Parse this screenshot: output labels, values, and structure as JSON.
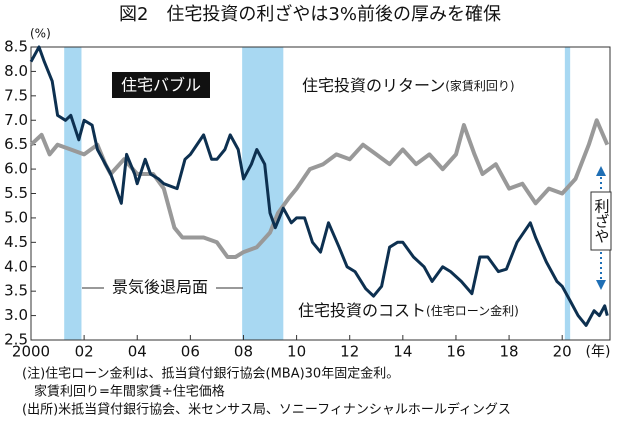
{
  "chart_data": {
    "type": "line",
    "title": "図2　住宅投資の利ざやは3%前後の厚みを確保",
    "y_unit": "(%)",
    "x_unit": "(年)",
    "xlim": [
      2000,
      2021.8
    ],
    "xticks": [
      2000,
      {
        "value": 2002,
        "label": "02"
      },
      {
        "value": 2004,
        "label": "04"
      },
      {
        "value": 2006,
        "label": "06"
      },
      {
        "value": 2008,
        "label": "08"
      },
      {
        "value": 2010,
        "label": "10"
      },
      {
        "value": 2012,
        "label": "12"
      },
      {
        "value": 2014,
        "label": "14"
      },
      {
        "value": 2016,
        "label": "16"
      },
      {
        "value": 2018,
        "label": "18"
      },
      {
        "value": 2020,
        "label": "20"
      }
    ],
    "ylim": [
      2.5,
      8.5
    ],
    "yticks": [
      2.5,
      {
        "value": 3,
        "label": "3.0"
      },
      3.5,
      {
        "value": 4,
        "label": "4.0"
      },
      4.5,
      {
        "value": 5,
        "label": "5.0"
      },
      5.5,
      {
        "value": 6,
        "label": "6.0"
      },
      6.5,
      {
        "value": 7,
        "label": "7.0"
      },
      7.5,
      {
        "value": 8,
        "label": "8.0"
      },
      8.5
    ],
    "grid": false,
    "shading": [
      [
        2001.25,
        2001.9
      ],
      [
        2007.95,
        2009.5
      ],
      [
        2020.1,
        2020.3
      ]
    ],
    "shading_color": "#a8d8f2",
    "shading_label": "景気後退局面",
    "bubble_label": "住宅バブル",
    "margin_label": "利ざや",
    "series": [
      {
        "name": "住宅投資のリターン",
        "subname": "(家賃利回り)",
        "color": "#999999",
        "x": [
          2000,
          2000.4,
          2000.7,
          2001,
          2001.5,
          2002,
          2002.5,
          2002.8,
          2003,
          2003.5,
          2004,
          2004.6,
          2005,
          2005.4,
          2005.7,
          2006,
          2006.5,
          2007,
          2007.4,
          2007.7,
          2008,
          2008.5,
          2009,
          2009.3,
          2009.7,
          2010,
          2010.5,
          2011,
          2011.5,
          2012,
          2012.5,
          2013,
          2013.5,
          2014,
          2014.5,
          2015,
          2015.5,
          2016,
          2016.3,
          2016.7,
          2017,
          2017.5,
          2018,
          2018.5,
          2019,
          2019.5,
          2020,
          2020.5,
          2021,
          2021.3,
          2021.7
        ],
        "values": [
          6.5,
          6.7,
          6.3,
          6.5,
          6.4,
          6.3,
          6.5,
          6.1,
          5.9,
          6.2,
          5.9,
          5.9,
          5.6,
          4.8,
          4.6,
          4.6,
          4.6,
          4.5,
          4.2,
          4.2,
          4.3,
          4.4,
          4.7,
          5.1,
          5.4,
          5.6,
          6.0,
          6.1,
          6.3,
          6.2,
          6.5,
          6.3,
          6.1,
          6.4,
          6.1,
          6.3,
          6.0,
          6.3,
          6.9,
          6.3,
          5.9,
          6.1,
          5.6,
          5.7,
          5.3,
          5.6,
          5.5,
          5.8,
          6.5,
          7.0,
          6.5
        ]
      },
      {
        "name": "住宅投資のコスト",
        "subname": "(住宅ローン金利)",
        "color": "#0d3050",
        "x": [
          2000,
          2000.3,
          2000.5,
          2000.8,
          2001,
          2001.3,
          2001.5,
          2001.8,
          2002,
          2002.3,
          2002.5,
          2002.8,
          2003,
          2003.4,
          2003.6,
          2003.9,
          2004,
          2004.3,
          2004.5,
          2004.8,
          2005,
          2005.5,
          2005.8,
          2006,
          2006.5,
          2006.8,
          2007,
          2007.3,
          2007.5,
          2007.8,
          2008,
          2008.3,
          2008.5,
          2008.8,
          2009,
          2009.2,
          2009.5,
          2009.8,
          2010,
          2010.3,
          2010.6,
          2010.9,
          2011.2,
          2011.6,
          2011.9,
          2012.2,
          2012.6,
          2012.9,
          2013.2,
          2013.5,
          2013.8,
          2014,
          2014.4,
          2014.8,
          2015.1,
          2015.5,
          2015.8,
          2016.2,
          2016.6,
          2016.9,
          2017.2,
          2017.6,
          2017.9,
          2018.3,
          2018.8,
          2019,
          2019.4,
          2019.8,
          2020,
          2020.3,
          2020.6,
          2020.9,
          2021.2,
          2021.4,
          2021.6,
          2021.7
        ],
        "values": [
          8.2,
          8.5,
          8.2,
          7.8,
          7.1,
          7.0,
          7.1,
          6.6,
          7.0,
          6.9,
          6.4,
          6.1,
          5.9,
          5.3,
          6.3,
          5.9,
          5.7,
          6.2,
          5.9,
          5.8,
          5.7,
          5.6,
          6.2,
          6.3,
          6.7,
          6.2,
          6.2,
          6.4,
          6.7,
          6.4,
          5.8,
          6.1,
          6.4,
          6.1,
          5.1,
          4.8,
          5.2,
          4.9,
          5.0,
          5.0,
          4.5,
          4.3,
          4.9,
          4.4,
          4.0,
          3.9,
          3.55,
          3.4,
          3.6,
          4.4,
          4.5,
          4.5,
          4.2,
          4.0,
          3.7,
          4.0,
          3.9,
          3.7,
          3.45,
          4.2,
          4.2,
          3.9,
          3.95,
          4.5,
          4.9,
          4.6,
          4.1,
          3.7,
          3.6,
          3.3,
          3.0,
          2.8,
          3.1,
          3.0,
          3.2,
          3.0
        ]
      }
    ],
    "notes": [
      "(注)住宅ローン金利は、抵当貸付銀行協会(MBA)30年固定金利。",
      "家賃利回り=年間家賃÷住宅価格",
      "(出所)米抵当貸付銀行協会、米センサス局、ソニーフィナンシャルホールディングス"
    ]
  }
}
